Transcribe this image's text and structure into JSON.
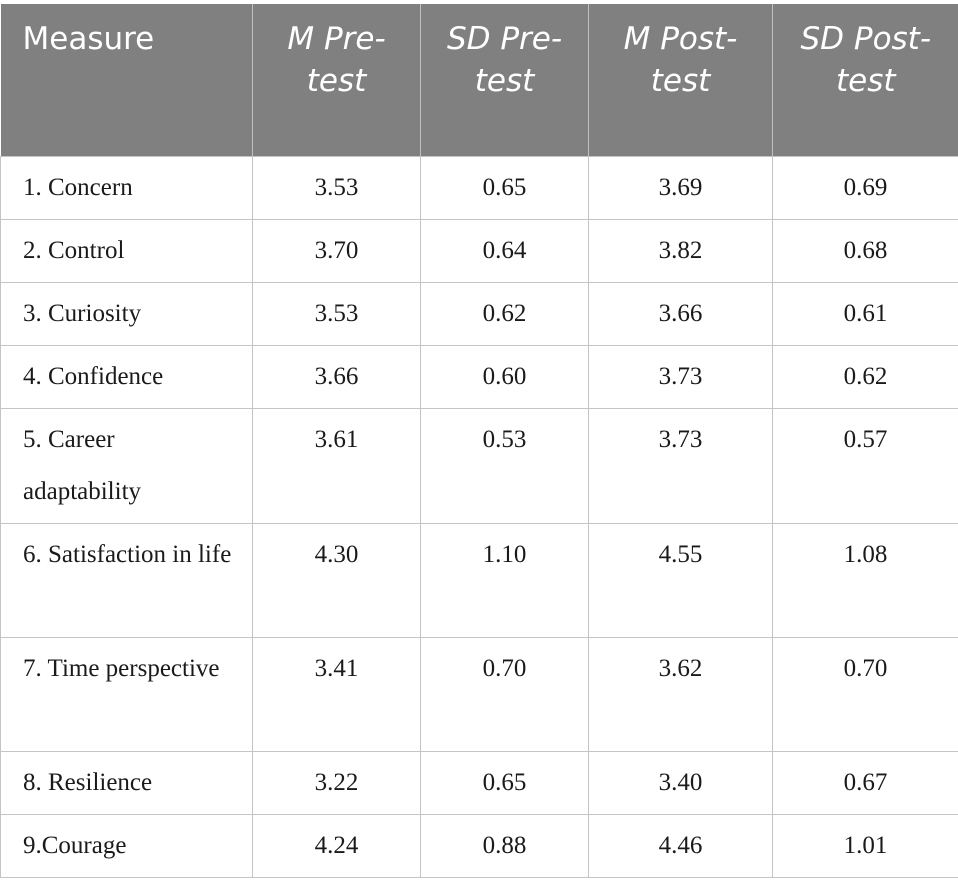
{
  "table": {
    "headers": [
      "Measure",
      "M Pre-test",
      "SD Pre-test",
      "M Post-test",
      "SD Post-test"
    ],
    "rows": [
      {
        "measure": "1. Concern",
        "m_pre": "3.53",
        "sd_pre": "0.65",
        "m_post": "3.69",
        "sd_post": "0.69"
      },
      {
        "measure": "2. Control",
        "m_pre": "3.70",
        "sd_pre": "0.64",
        "m_post": "3.82",
        "sd_post": "0.68"
      },
      {
        "measure": "3. Curiosity",
        "m_pre": "3.53",
        "sd_pre": "0.62",
        "m_post": "3.66",
        "sd_post": "0.61"
      },
      {
        "measure": "4. Confidence",
        "m_pre": "3.66",
        "sd_pre": "0.60",
        "m_post": "3.73",
        "sd_post": "0.62"
      },
      {
        "measure": "5. Career adaptability",
        "m_pre": "3.61",
        "sd_pre": "0.53",
        "m_post": "3.73",
        "sd_post": "0.57"
      },
      {
        "measure": "6. Satisfaction in life",
        "m_pre": "4.30",
        "sd_pre": "1.10",
        "m_post": "4.55",
        "sd_post": "1.08"
      },
      {
        "measure": "7. Time perspective",
        "m_pre": "3.41",
        "sd_pre": "0.70",
        "m_post": "3.62",
        "sd_post": "0.70"
      },
      {
        "measure": "8. Resilience",
        "m_pre": "3.22",
        "sd_pre": "0.65",
        "m_post": "3.40",
        "sd_post": "0.67"
      },
      {
        "measure": "9.Courage",
        "m_pre": "4.24",
        "sd_pre": "0.88",
        "m_post": "4.46",
        "sd_post": "1.01"
      }
    ]
  }
}
